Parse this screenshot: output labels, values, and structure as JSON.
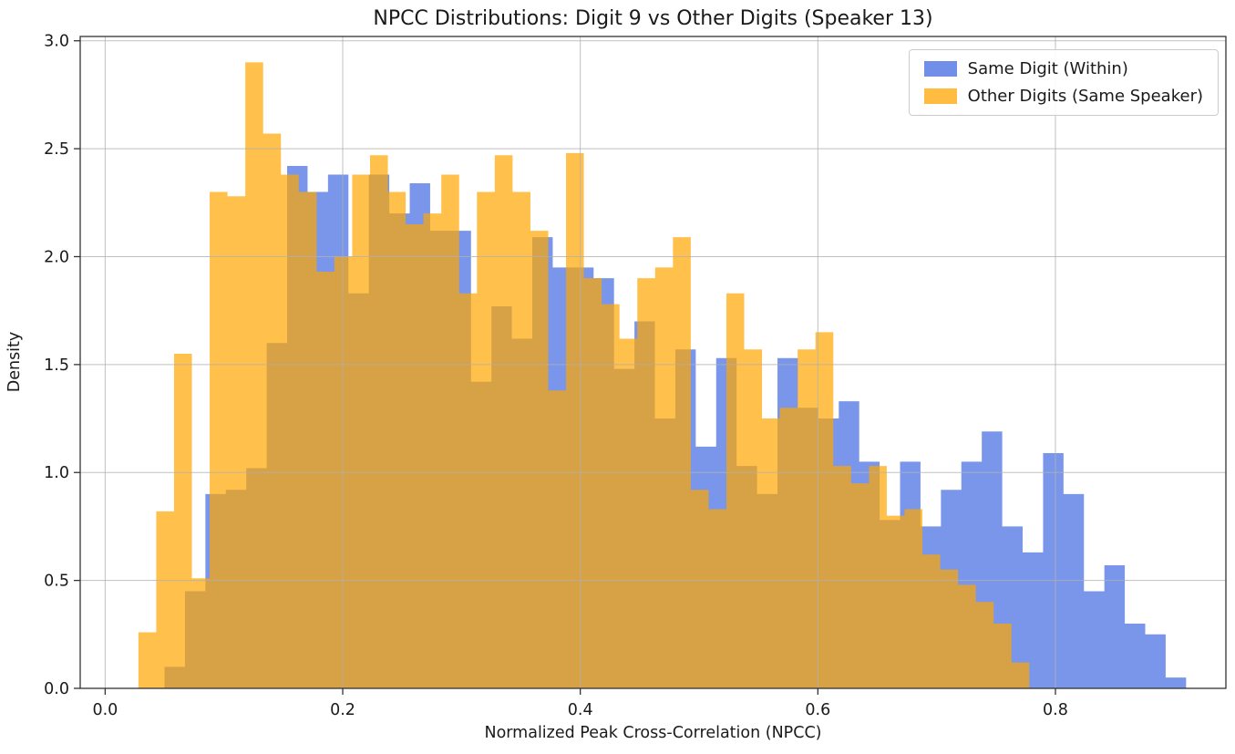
{
  "figure_bg": "#ffffff",
  "chart_data": {
    "type": "bar",
    "subtype": "overlaid-histogram",
    "title": "NPCC Distributions: Digit 9 vs Other Digits (Speaker 13)",
    "xlabel": "Normalized Peak Cross-Correlation (NPCC)",
    "ylabel": "Density",
    "xlim": [
      -0.021,
      0.9435
    ],
    "ylim": [
      0,
      3.02
    ],
    "xticks": [
      0.0,
      0.2,
      0.4,
      0.6,
      0.8
    ],
    "xtick_labels": [
      "0.0",
      "0.2",
      "0.4",
      "0.6",
      "0.8"
    ],
    "yticks": [
      0.0,
      0.5,
      1.0,
      1.5,
      2.0,
      2.5,
      3.0
    ],
    "ytick_labels": [
      "0.0",
      "0.5",
      "1.0",
      "1.5",
      "2.0",
      "2.5",
      "3.0"
    ],
    "grid": true,
    "grid_color": "#b0b0b0",
    "spine_color": "#333333",
    "legend_position": "upper right",
    "series": [
      {
        "name": "Same Digit (Within)",
        "color": "#4169E1",
        "alpha": 0.7,
        "bin_start": 0.05,
        "bin_width": 0.0172,
        "densities": [
          0.1,
          0.45,
          0.9,
          0.92,
          1.02,
          1.6,
          2.42,
          2.3,
          2.38,
          1.83,
          2.38,
          2.2,
          2.34,
          2.12,
          2.12,
          1.42,
          1.77,
          1.62,
          2.09,
          1.95,
          1.95,
          1.9,
          1.48,
          1.7,
          1.25,
          1.57,
          1.12,
          1.53,
          1.03,
          0.9,
          1.53,
          1.3,
          1.25,
          1.33,
          1.05,
          0.78,
          1.05,
          0.75,
          0.92,
          1.05,
          1.19,
          0.75,
          0.63,
          1.09,
          0.9,
          0.45,
          0.57,
          0.3,
          0.25,
          0.05
        ]
      },
      {
        "name": "Other Digits (Same Speaker)",
        "color": "#FFA500",
        "alpha": 0.7,
        "bin_start": 0.028,
        "bin_width": 0.015,
        "densities": [
          0.26,
          0.82,
          1.55,
          0.51,
          2.3,
          2.28,
          2.9,
          2.57,
          2.38,
          2.3,
          1.93,
          2.0,
          2.38,
          2.47,
          2.3,
          2.15,
          2.2,
          2.38,
          1.83,
          2.3,
          2.47,
          2.3,
          2.12,
          1.38,
          2.48,
          1.9,
          1.78,
          1.62,
          1.9,
          1.95,
          2.09,
          0.92,
          0.83,
          1.83,
          1.57,
          1.25,
          1.3,
          1.57,
          1.65,
          1.03,
          0.95,
          1.03,
          0.8,
          0.83,
          0.62,
          0.55,
          0.48,
          0.4,
          0.3,
          0.12
        ]
      }
    ]
  },
  "legend": {
    "items": [
      {
        "label": "Same Digit (Within)",
        "color": "#4169E1"
      },
      {
        "label": "Other Digits (Same Speaker)",
        "color": "#FFA500"
      }
    ]
  }
}
